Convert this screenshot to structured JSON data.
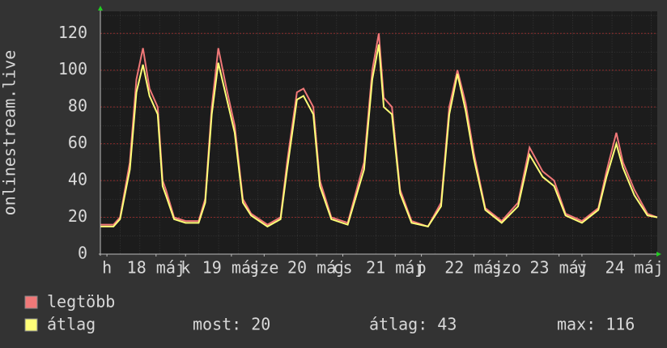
{
  "chart_data": {
    "type": "line",
    "ylabel": "onlinestream.live",
    "x": [
      0,
      4,
      6,
      9,
      11,
      13,
      15,
      17.5,
      19,
      20,
      22.5,
      26,
      30,
      32,
      34,
      36,
      38.5,
      41,
      43.5,
      46,
      51,
      55,
      57,
      60,
      62,
      65,
      67,
      70.5,
      75.5,
      80.5,
      83,
      85,
      86.5,
      89,
      91.5,
      95,
      100,
      104,
      106.5,
      109,
      111.5,
      114,
      117.5,
      122.5,
      127.5,
      131,
      135,
      138.5,
      142,
      147,
      152,
      154.5,
      157.5,
      159.5,
      163,
      167,
      170
    ],
    "series": [
      {
        "name": "legtöbb",
        "color": "#f07878",
        "values": [
          16,
          16,
          20,
          50,
          95,
          112,
          90,
          80,
          40,
          35,
          20,
          18,
          18,
          30,
          80,
          112,
          90,
          70,
          30,
          22,
          16,
          20,
          50,
          88,
          90,
          80,
          40,
          20,
          17,
          50,
          100,
          120,
          85,
          80,
          35,
          18,
          15,
          28,
          80,
          100,
          82,
          55,
          25,
          18,
          28,
          58,
          45,
          40,
          22,
          18,
          25,
          45,
          66,
          50,
          35,
          22,
          20
        ]
      },
      {
        "name": "átlag",
        "color": "#ffff78",
        "values": [
          15,
          15,
          19,
          46,
          88,
          103,
          86,
          76,
          37,
          32,
          19,
          17,
          17,
          28,
          76,
          104,
          85,
          66,
          28,
          21,
          15,
          19,
          46,
          84,
          86,
          76,
          37,
          19,
          16,
          46,
          95,
          114,
          80,
          76,
          33,
          17,
          15,
          26,
          76,
          98,
          78,
          52,
          24,
          17,
          26,
          54,
          42,
          37,
          21,
          17,
          24,
          42,
          60,
          47,
          32,
          21,
          20
        ]
      }
    ],
    "xlim": [
      0,
      170
    ],
    "xticks": [
      {
        "value": 2,
        "label": "h"
      },
      {
        "value": 17,
        "label": "18 máj"
      },
      {
        "value": 26,
        "label": "k"
      },
      {
        "value": 40,
        "label": "19 máj"
      },
      {
        "value": 50,
        "label": "sze"
      },
      {
        "value": 66,
        "label": "20 máj"
      },
      {
        "value": 74,
        "label": "cs"
      },
      {
        "value": 90,
        "label": "21 máj"
      },
      {
        "value": 98,
        "label": "p"
      },
      {
        "value": 114,
        "label": "22 máj"
      },
      {
        "value": 124,
        "label": "szo"
      },
      {
        "value": 140,
        "label": "23 máj"
      },
      {
        "value": 147,
        "label": "v"
      },
      {
        "value": 163,
        "label": "24 máj"
      }
    ],
    "ylim": [
      0,
      132
    ],
    "yticks": [
      0,
      20,
      40,
      60,
      80,
      100,
      120
    ],
    "grid": true,
    "stats": [
      "most: 20",
      "átlag: 43",
      "max: 116"
    ]
  }
}
